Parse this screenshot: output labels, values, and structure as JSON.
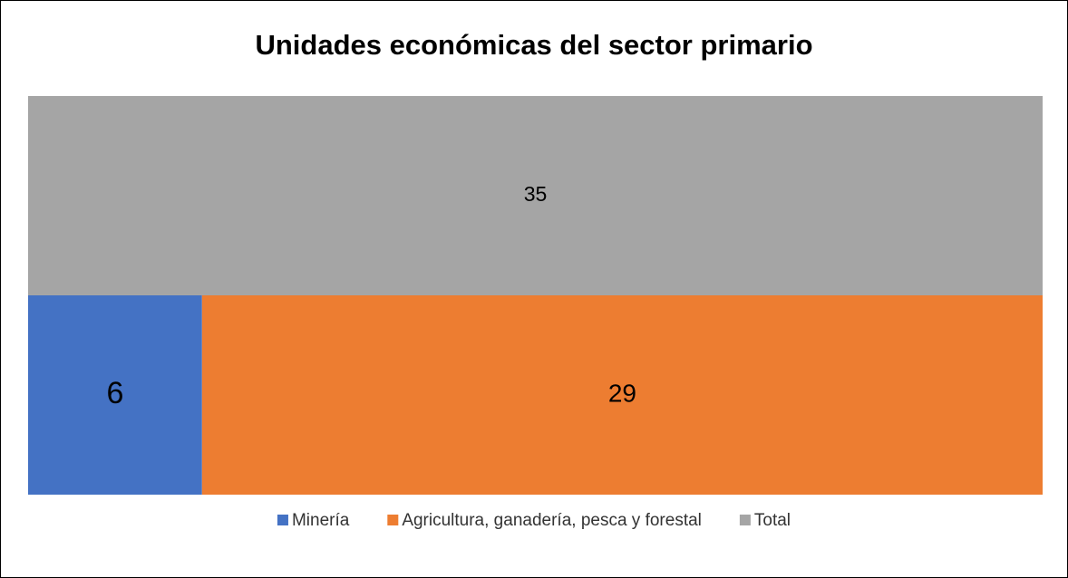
{
  "chart_data": {
    "type": "bar",
    "orientation": "horizontal",
    "stacked": true,
    "title": "Unidades económicas del sector primario",
    "categories": [
      null,
      null
    ],
    "series": [
      {
        "name": "Minería",
        "color": "#4472c4",
        "values": [
          6,
          null
        ]
      },
      {
        "name": "Agricultura, ganadería, pesca y forestal",
        "color": "#ed7d31",
        "values": [
          29,
          null
        ]
      },
      {
        "name": "Total",
        "color": "#a5a5a5",
        "values": [
          null,
          35
        ]
      }
    ],
    "xlim": [
      0,
      35
    ],
    "legend": "bottom"
  }
}
